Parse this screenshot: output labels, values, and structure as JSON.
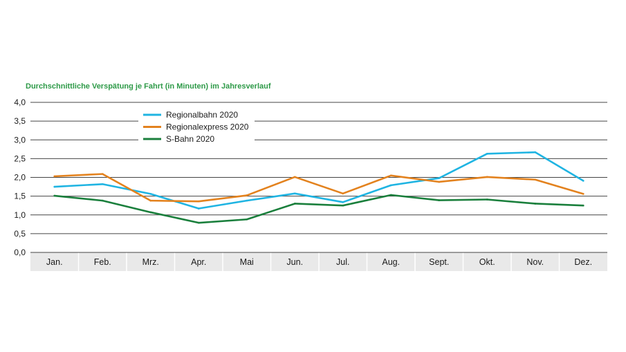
{
  "chart_data": {
    "type": "line",
    "title": "Durchschnittliche Verspätung je Fahrt (in Minuten) im Jahresverlauf",
    "xlabel": "",
    "ylabel": "",
    "categories": [
      "Jan.",
      "Feb.",
      "Mrz.",
      "Apr.",
      "Mai",
      "Jun.",
      "Jul.",
      "Aug.",
      "Sept.",
      "Okt.",
      "Nov.",
      "Dez."
    ],
    "ylim": [
      0,
      4
    ],
    "yticks": [
      0,
      0.5,
      1,
      1.5,
      2,
      2.5,
      3,
      3.5,
      4
    ],
    "ytick_labels": [
      "0,0",
      "0,5",
      "1,0",
      "1,5",
      "2,0",
      "2,5",
      "3,0",
      "3,5",
      "4,0"
    ],
    "grid": true,
    "legend_position": "top-left",
    "series": [
      {
        "name": "Regionalbahn 2020",
        "color": "#1fb4e2",
        "values": [
          1.75,
          1.82,
          1.56,
          1.17,
          1.38,
          1.57,
          1.34,
          1.79,
          1.98,
          2.63,
          2.67,
          1.91
        ]
      },
      {
        "name": "Regionalexpress 2020",
        "color": "#e3821e",
        "values": [
          2.03,
          2.09,
          1.38,
          1.36,
          1.52,
          2.01,
          1.57,
          2.05,
          1.88,
          2.01,
          1.94,
          1.56
        ]
      },
      {
        "name": "S-Bahn 2020",
        "color": "#1a7f3c",
        "values": [
          1.51,
          1.38,
          1.07,
          0.79,
          0.88,
          1.3,
          1.25,
          1.53,
          1.39,
          1.41,
          1.3,
          1.25
        ]
      }
    ]
  },
  "colors": {
    "title": "#2e9a48",
    "grid": "#444444",
    "category_band": "#e9e9e9"
  }
}
